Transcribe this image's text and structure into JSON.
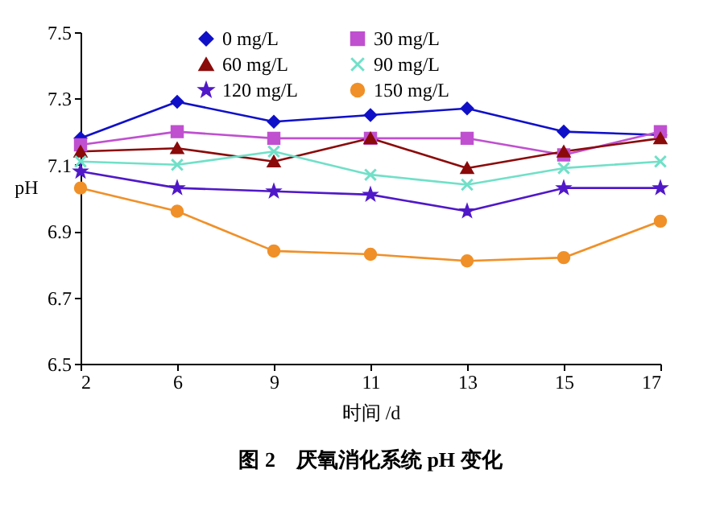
{
  "chart_data": {
    "type": "line",
    "title": "图 2　厌氧消化系统 pH 变化",
    "xlabel": "时间 /d",
    "ylabel": "pH",
    "categories": [
      "2",
      "6",
      "9",
      "11",
      "13",
      "15",
      "17"
    ],
    "ylim": [
      6.5,
      7.5
    ],
    "yticks": [
      6.5,
      6.7,
      6.9,
      7.1,
      7.3,
      7.5
    ],
    "grid": false,
    "legend": "top",
    "series": [
      {
        "name": "0 mg/L",
        "color": "#1010c8",
        "marker": "diamond",
        "values": [
          7.18,
          7.29,
          7.23,
          7.25,
          7.27,
          7.2,
          7.19
        ]
      },
      {
        "name": "30 mg/L",
        "color": "#c050d0",
        "marker": "square",
        "values": [
          7.16,
          7.2,
          7.18,
          7.18,
          7.18,
          7.13,
          7.2
        ]
      },
      {
        "name": "60 mg/L",
        "color": "#8b0a0a",
        "marker": "triangle",
        "values": [
          7.14,
          7.15,
          7.11,
          7.18,
          7.09,
          7.14,
          7.18
        ]
      },
      {
        "name": "90 mg/L",
        "color": "#70e0c8",
        "marker": "cross",
        "values": [
          7.11,
          7.1,
          7.14,
          7.07,
          7.04,
          7.09,
          7.11
        ]
      },
      {
        "name": "120 mg/L",
        "color": "#5018c8",
        "marker": "star",
        "values": [
          7.08,
          7.03,
          7.02,
          7.01,
          6.96,
          7.03,
          7.03
        ]
      },
      {
        "name": "150 mg/L",
        "color": "#f09028",
        "marker": "circle",
        "values": [
          7.03,
          6.96,
          6.84,
          6.83,
          6.81,
          6.82,
          6.93
        ]
      }
    ]
  }
}
